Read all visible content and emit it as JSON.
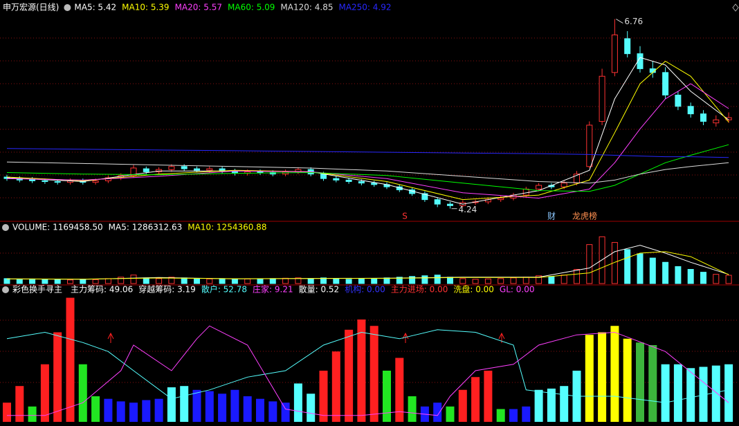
{
  "header": {
    "title": "申万宏源(日线)"
  },
  "chart_data": [
    {
      "type": "candlestick",
      "ylim": [
        4.09,
        6.83
      ],
      "up_color": "#ff3232",
      "down_color": "#54fcfc",
      "open": [
        4.66,
        4.64,
        4.63,
        4.61,
        4.6,
        4.59,
        4.61,
        4.59,
        4.61,
        4.65,
        4.68,
        4.77,
        4.73,
        4.76,
        4.8,
        4.77,
        4.75,
        4.77,
        4.74,
        4.71,
        4.73,
        4.72,
        4.7,
        4.73,
        4.76,
        4.7,
        4.64,
        4.62,
        4.6,
        4.58,
        4.56,
        4.53,
        4.49,
        4.44,
        4.36,
        4.3,
        4.28,
        4.32,
        4.33,
        4.36,
        4.38,
        4.42,
        4.5,
        4.55,
        4.53,
        4.58,
        4.8,
        5.4,
        6.05,
        6.5,
        6.3,
        6.1,
        6.05,
        5.75,
        5.6,
        5.5,
        5.38,
        5.42
      ],
      "high": [
        4.69,
        4.67,
        4.66,
        4.64,
        4.63,
        4.64,
        4.64,
        4.64,
        4.68,
        4.71,
        4.82,
        4.8,
        4.79,
        4.83,
        4.83,
        4.8,
        4.8,
        4.8,
        4.77,
        4.76,
        4.76,
        4.75,
        4.76,
        4.79,
        4.79,
        4.73,
        4.67,
        4.65,
        4.63,
        4.61,
        4.59,
        4.56,
        4.52,
        4.47,
        4.39,
        4.33,
        4.35,
        4.36,
        4.39,
        4.41,
        4.45,
        4.53,
        4.58,
        4.58,
        4.61,
        4.74,
        5.4,
        6.1,
        6.76,
        6.6,
        6.4,
        6.2,
        6.12,
        5.8,
        5.65,
        5.55,
        5.48,
        5.52
      ],
      "low": [
        4.61,
        4.59,
        4.58,
        4.57,
        4.56,
        4.56,
        4.56,
        4.56,
        4.58,
        4.62,
        4.65,
        4.7,
        4.7,
        4.73,
        4.74,
        4.72,
        4.72,
        4.71,
        4.68,
        4.68,
        4.69,
        4.67,
        4.67,
        4.7,
        4.67,
        4.61,
        4.59,
        4.57,
        4.55,
        4.53,
        4.5,
        4.46,
        4.41,
        4.33,
        4.26,
        4.24,
        4.26,
        4.29,
        4.3,
        4.33,
        4.35,
        4.39,
        4.47,
        4.5,
        4.5,
        4.55,
        4.78,
        5.35,
        6.0,
        6.25,
        6.05,
        5.98,
        5.7,
        5.55,
        5.45,
        5.35,
        5.33,
        5.38
      ],
      "close": [
        4.64,
        4.62,
        4.61,
        4.6,
        4.59,
        4.61,
        4.59,
        4.61,
        4.65,
        4.68,
        4.78,
        4.73,
        4.76,
        4.8,
        4.77,
        4.75,
        4.77,
        4.74,
        4.71,
        4.73,
        4.72,
        4.7,
        4.73,
        4.76,
        4.7,
        4.64,
        4.62,
        4.6,
        4.58,
        4.56,
        4.53,
        4.49,
        4.44,
        4.36,
        4.3,
        4.28,
        4.32,
        4.33,
        4.36,
        4.38,
        4.42,
        4.5,
        4.55,
        4.53,
        4.58,
        4.7,
        5.35,
        6.0,
        6.55,
        6.3,
        6.1,
        6.05,
        5.75,
        5.6,
        5.5,
        5.4,
        5.42,
        5.45
      ],
      "series": [
        {
          "legend": {
            "value": 5.42,
            "label": "MA5: 5.42"
          },
          "color": "#ffffff",
          "x": [
            0,
            6,
            12,
            18,
            24,
            30,
            36,
            42,
            46,
            48,
            50,
            52,
            54,
            57
          ],
          "values": [
            4.65,
            4.6,
            4.74,
            4.74,
            4.73,
            4.56,
            4.3,
            4.48,
            4.75,
            5.7,
            6.25,
            6.15,
            5.8,
            5.42
          ]
        },
        {
          "legend": {
            "value": 5.39,
            "label": "MA10: 5.39"
          },
          "color": "#ffff00",
          "x": [
            0,
            6,
            12,
            18,
            24,
            30,
            36,
            42,
            46,
            48,
            50,
            52,
            54,
            57
          ],
          "values": [
            4.66,
            4.61,
            4.7,
            4.75,
            4.73,
            4.6,
            4.36,
            4.42,
            4.62,
            5.25,
            5.9,
            6.2,
            6.0,
            5.39
          ]
        },
        {
          "legend": {
            "value": 5.57,
            "label": "MA20: 5.57"
          },
          "color": "#ff40ff",
          "x": [
            0,
            6,
            12,
            18,
            24,
            30,
            36,
            42,
            46,
            48,
            50,
            52,
            54,
            57
          ],
          "values": [
            4.64,
            4.62,
            4.67,
            4.74,
            4.73,
            4.64,
            4.45,
            4.38,
            4.5,
            4.85,
            5.3,
            5.7,
            5.9,
            5.57
          ]
        },
        {
          "legend": {
            "value": 5.09,
            "label": "MA60: 5.09"
          },
          "color": "#00ff00",
          "x": [
            0,
            6,
            12,
            18,
            24,
            30,
            36,
            42,
            46,
            48,
            50,
            52,
            54,
            57
          ],
          "values": [
            4.72,
            4.7,
            4.69,
            4.71,
            4.72,
            4.68,
            4.58,
            4.48,
            4.47,
            4.55,
            4.7,
            4.85,
            4.95,
            5.09
          ]
        },
        {
          "legend": {
            "value": 4.85,
            "label": "MA120: 4.85"
          },
          "color": "#dcdcdc",
          "x": [
            0,
            6,
            12,
            18,
            24,
            30,
            36,
            42,
            46,
            48,
            50,
            52,
            54,
            57
          ],
          "values": [
            4.86,
            4.84,
            4.82,
            4.8,
            4.78,
            4.74,
            4.67,
            4.6,
            4.58,
            4.62,
            4.7,
            4.76,
            4.8,
            4.85
          ]
        },
        {
          "legend": {
            "value": 4.92,
            "label": "MA250: 4.92"
          },
          "color": "#2828ff",
          "x": [
            0,
            6,
            12,
            18,
            24,
            30,
            36,
            42,
            46,
            48,
            50,
            52,
            54,
            57
          ],
          "values": [
            5.04,
            5.03,
            5.02,
            5.01,
            5.0,
            4.99,
            4.98,
            4.97,
            4.96,
            4.95,
            4.94,
            4.93,
            4.93,
            4.92
          ]
        }
      ],
      "events": [
        {
          "label": "S",
          "color": "#ff3232"
        },
        {
          "label": "财",
          "color": "#8cc8ff"
        },
        {
          "label": "龙虎榜",
          "color": "#ff9050"
        }
      ]
    },
    {
      "type": "bar",
      "ylim": [
        0,
        8200000
      ],
      "legend": [
        {
          "value": 1169458.5,
          "label": "VOLUME: 1169458.50",
          "color": "#ffffff"
        }
      ],
      "values": [
        700000,
        600000,
        650000,
        550000,
        600000,
        500000,
        600000,
        550000,
        700000,
        900000,
        1200000,
        800000,
        700000,
        900000,
        800000,
        700000,
        650000,
        700000,
        600000,
        650000,
        600000,
        700000,
        750000,
        800000,
        700000,
        800000,
        700000,
        600000,
        650000,
        700000,
        800000,
        900000,
        1000000,
        1100000,
        1200000,
        900000,
        700000,
        600000,
        650000,
        700000,
        800000,
        900000,
        1100000,
        1000000,
        1200000,
        2000000,
        5500000,
        6600000,
        5800000,
        4800000,
        4200000,
        3600000,
        3000000,
        2400000,
        2000000,
        1600000,
        1300000,
        1169458.5
      ],
      "series": [
        {
          "legend": {
            "value": 1286312.63,
            "label": "MA5: 1286312.63"
          },
          "color": "#ffffff",
          "x": [
            0,
            6,
            12,
            18,
            24,
            30,
            36,
            42,
            46,
            48,
            50,
            52,
            54,
            57
          ],
          "values": [
            650000,
            600000,
            850000,
            650000,
            720000,
            750000,
            900000,
            900000,
            2200000,
            4500000,
            5400000,
            4300000,
            3000000,
            1286312.63
          ]
        },
        {
          "legend": {
            "value": 1254360.88,
            "label": "MA10: 1254360.88"
          },
          "color": "#ffff00",
          "x": [
            0,
            6,
            12,
            18,
            24,
            30,
            36,
            42,
            46,
            48,
            50,
            52,
            54,
            57
          ],
          "values": [
            660000,
            620000,
            780000,
            680000,
            700000,
            730000,
            850000,
            850000,
            1500000,
            3000000,
            4300000,
            4500000,
            3800000,
            1254360.88
          ]
        }
      ]
    },
    {
      "type": "bar",
      "title": "彩色换手寻主",
      "ylim": [
        0,
        100
      ],
      "legend": [
        {
          "value": 49.06,
          "label": "主力筹码: 49.06",
          "color": "#ffffff"
        },
        {
          "value": 3.19,
          "label": "穿越筹码: 3.19",
          "color": "#ffffff"
        },
        {
          "value": 52.78,
          "label": "散户: 52.78",
          "color": "#54fcfc"
        },
        {
          "value": 9.21,
          "label": "庄家: 9.21",
          "color": "#ff40ff"
        },
        {
          "value": 0.52,
          "label": "散量: 0.52",
          "color": "#ffffff"
        },
        {
          "value": 0,
          "label": "机构: 0.00",
          "color": "#3232ff"
        },
        {
          "value": 0,
          "label": "主力进场: 0.00",
          "color": "#ff3232"
        },
        {
          "value": 0,
          "label": "洗盘: 0.00",
          "color": "#ffff00"
        },
        {
          "value": 0,
          "label": "GL: 0.00",
          "color": "#ff40ff"
        }
      ],
      "values": [
        15,
        28,
        12,
        45,
        70,
        97,
        45,
        20,
        18,
        16,
        15,
        17,
        18,
        27,
        28,
        25,
        24,
        22,
        25,
        20,
        18,
        16,
        15,
        30,
        22,
        40,
        55,
        72,
        80,
        75,
        40,
        50,
        20,
        12,
        15,
        12,
        25,
        35,
        40,
        10,
        10,
        12,
        25,
        26,
        28,
        40,
        68,
        70,
        75,
        65,
        62,
        60,
        45,
        45,
        42,
        43,
        44,
        45
      ],
      "colors": [
        "#ff2020",
        "#ff2020",
        "#22e622",
        "#ff2020",
        "#ff2020",
        "#ff2020",
        "#22e622",
        "#22e622",
        "#1a1aff",
        "#1a1aff",
        "#1a1aff",
        "#1a1aff",
        "#1a1aff",
        "#55ffff",
        "#55ffff",
        "#1a1aff",
        "#1a1aff",
        "#1a1aff",
        "#1a1aff",
        "#1a1aff",
        "#1a1aff",
        "#1a1aff",
        "#1a1aff",
        "#55ffff",
        "#55ffff",
        "#ff2020",
        "#ff2020",
        "#ff2020",
        "#ff2020",
        "#ff2020",
        "#22e622",
        "#ff2020",
        "#22e622",
        "#1a1aff",
        "#1a1aff",
        "#22e622",
        "#ff2020",
        "#ff2020",
        "#ff2020",
        "#22e622",
        "#1a1aff",
        "#1a1aff",
        "#55ffff",
        "#55ffff",
        "#55ffff",
        "#55ffff",
        "#ffff00",
        "#ffff00",
        "#ffff00",
        "#ffff00",
        "#3cb43c",
        "#3cb43c",
        "#55ffff",
        "#55ffff",
        "#55ffff",
        "#55ffff",
        "#55ffff",
        "#55ffff"
      ],
      "lines": [
        {
          "color": "#55ffff",
          "x": [
            0,
            3,
            6,
            8,
            10,
            13,
            16,
            19,
            22,
            25,
            28,
            31,
            34,
            37,
            40,
            41,
            45,
            48,
            52,
            57
          ],
          "values": [
            65,
            70,
            62,
            55,
            40,
            18,
            25,
            35,
            40,
            60,
            70,
            65,
            72,
            70,
            60,
            25,
            20,
            20,
            15,
            25
          ]
        },
        {
          "color": "#ff40ff",
          "x": [
            0,
            3,
            6,
            9,
            10,
            13,
            15,
            16,
            19,
            22,
            25,
            28,
            31,
            34,
            35,
            37,
            40,
            42,
            45,
            48,
            52,
            57
          ],
          "values": [
            5,
            5,
            15,
            40,
            60,
            40,
            65,
            75,
            60,
            10,
            5,
            5,
            8,
            5,
            20,
            40,
            45,
            60,
            68,
            70,
            55,
            15
          ]
        }
      ]
    }
  ]
}
